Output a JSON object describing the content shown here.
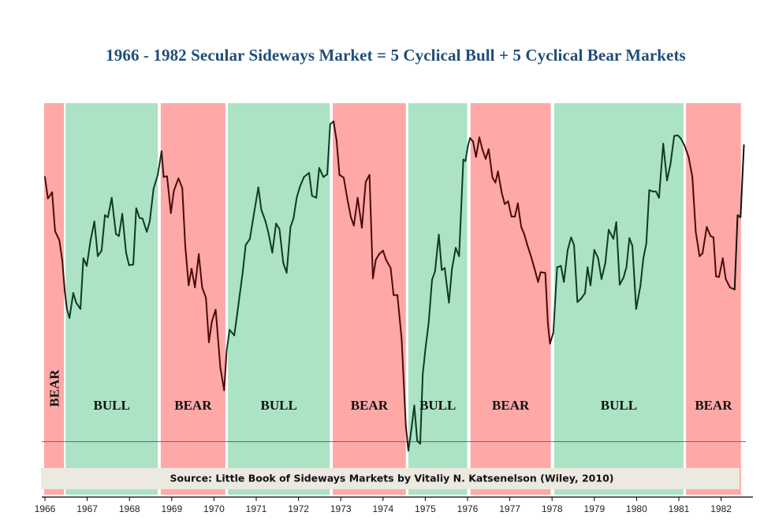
{
  "chart_data": {
    "type": "line",
    "title": "1966 - 1982 Secular Sideways Market = 5 Cyclical Bull + 5 Cyclical Bear Markets",
    "xlabel": "",
    "ylabel": "",
    "x_ticks": [
      "1966",
      "1967",
      "1968",
      "1969",
      "1970",
      "1971",
      "1972",
      "1973",
      "1974",
      "1975",
      "1976",
      "1977",
      "1978",
      "1979",
      "1980",
      "1981",
      "1982"
    ],
    "xlim": [
      1966,
      1982.7
    ],
    "ylim": [
      540,
      1100
    ],
    "grid": false,
    "y_axis_visible": false,
    "reference_line": {
      "value": 590,
      "color": "#4a6fa5"
    },
    "source_note": "Source: Little Book of Sideways Markets by Vitaliy N. Katsenelson (Wiley, 2010)",
    "colors": {
      "bear_band": "#ffa8a8",
      "bull_band": "#abe3c4",
      "bear_line": "#4a0a0a",
      "bull_line": "#0f3a22",
      "tail_line": "#111111",
      "title": "#1f4e79",
      "source_box": "#ece9e0"
    },
    "regimes": [
      {
        "type": "bear",
        "label": "BEAR",
        "start": 1966.0,
        "end": 1966.45,
        "vertical_label": true
      },
      {
        "type": "bull",
        "label": "BULL",
        "start": 1966.49,
        "end": 1968.67
      },
      {
        "type": "bear",
        "label": "BEAR",
        "start": 1968.74,
        "end": 1970.27
      },
      {
        "type": "bull",
        "label": "BULL",
        "start": 1970.33,
        "end": 1972.74
      },
      {
        "type": "bear",
        "label": "BEAR",
        "start": 1972.81,
        "end": 1974.54
      },
      {
        "type": "bull",
        "label": "BULL",
        "start": 1974.6,
        "end": 1975.99
      },
      {
        "type": "bear",
        "label": "BEAR",
        "start": 1976.07,
        "end": 1977.97
      },
      {
        "type": "bull",
        "label": "BULL",
        "start": 1978.05,
        "end": 1981.11
      },
      {
        "type": "bear",
        "label": "BEAR",
        "start": 1981.17,
        "end": 1982.47
      }
    ],
    "series": [
      {
        "name": "DJIA",
        "points": [
          [
            1966.0,
            971
          ],
          [
            1966.07,
            940
          ],
          [
            1966.17,
            949
          ],
          [
            1966.24,
            893
          ],
          [
            1966.34,
            880
          ],
          [
            1966.41,
            851
          ],
          [
            1966.47,
            806
          ],
          [
            1966.52,
            781
          ],
          [
            1966.58,
            768
          ],
          [
            1966.67,
            804
          ],
          [
            1966.74,
            790
          ],
          [
            1966.84,
            781
          ],
          [
            1966.91,
            854
          ],
          [
            1966.99,
            843
          ],
          [
            1967.08,
            880
          ],
          [
            1967.17,
            907
          ],
          [
            1967.25,
            857
          ],
          [
            1967.34,
            865
          ],
          [
            1967.42,
            916
          ],
          [
            1967.49,
            913
          ],
          [
            1967.58,
            941
          ],
          [
            1967.68,
            889
          ],
          [
            1967.75,
            886
          ],
          [
            1967.83,
            918
          ],
          [
            1967.92,
            862
          ],
          [
            1967.99,
            844
          ],
          [
            1968.09,
            845
          ],
          [
            1968.16,
            926
          ],
          [
            1968.24,
            912
          ],
          [
            1968.31,
            911
          ],
          [
            1968.41,
            892
          ],
          [
            1968.48,
            907
          ],
          [
            1968.57,
            954
          ],
          [
            1968.67,
            974
          ],
          [
            1968.76,
            1008
          ],
          [
            1968.81,
            971
          ],
          [
            1968.89,
            972
          ],
          [
            1968.98,
            919
          ],
          [
            1969.05,
            951
          ],
          [
            1969.16,
            969
          ],
          [
            1969.25,
            955
          ],
          [
            1969.32,
            872
          ],
          [
            1969.4,
            815
          ],
          [
            1969.47,
            839
          ],
          [
            1969.55,
            812
          ],
          [
            1969.64,
            860
          ],
          [
            1969.72,
            812
          ],
          [
            1969.81,
            797
          ],
          [
            1969.88,
            733
          ],
          [
            1969.95,
            763
          ],
          [
            1970.04,
            780
          ],
          [
            1970.15,
            697
          ],
          [
            1970.24,
            664
          ],
          [
            1970.3,
            721
          ],
          [
            1970.37,
            751
          ],
          [
            1970.48,
            743
          ],
          [
            1970.55,
            774
          ],
          [
            1970.68,
            834
          ],
          [
            1970.75,
            873
          ],
          [
            1970.85,
            882
          ],
          [
            1970.94,
            916
          ],
          [
            1971.05,
            956
          ],
          [
            1971.12,
            924
          ],
          [
            1971.22,
            907
          ],
          [
            1971.29,
            890
          ],
          [
            1971.38,
            862
          ],
          [
            1971.47,
            904
          ],
          [
            1971.55,
            896
          ],
          [
            1971.64,
            847
          ],
          [
            1971.72,
            833
          ],
          [
            1971.81,
            899
          ],
          [
            1971.88,
            911
          ],
          [
            1971.96,
            942
          ],
          [
            1972.04,
            958
          ],
          [
            1972.13,
            971
          ],
          [
            1972.25,
            977
          ],
          [
            1972.32,
            944
          ],
          [
            1972.42,
            941
          ],
          [
            1972.49,
            984
          ],
          [
            1972.59,
            971
          ],
          [
            1972.68,
            975
          ],
          [
            1972.75,
            1047
          ],
          [
            1972.83,
            1051
          ],
          [
            1972.9,
            1024
          ],
          [
            1972.97,
            974
          ],
          [
            1973.07,
            970
          ],
          [
            1973.16,
            938
          ],
          [
            1973.24,
            913
          ],
          [
            1973.31,
            901
          ],
          [
            1973.4,
            941
          ],
          [
            1973.5,
            898
          ],
          [
            1973.59,
            964
          ],
          [
            1973.68,
            974
          ],
          [
            1973.76,
            825
          ],
          [
            1973.83,
            852
          ],
          [
            1973.91,
            860
          ],
          [
            1974.0,
            865
          ],
          [
            1974.07,
            852
          ],
          [
            1974.18,
            840
          ],
          [
            1974.25,
            801
          ],
          [
            1974.34,
            801
          ],
          [
            1974.44,
            738
          ],
          [
            1974.54,
            613
          ],
          [
            1974.6,
            577
          ],
          [
            1974.67,
            607
          ],
          [
            1974.74,
            642
          ],
          [
            1974.81,
            591
          ],
          [
            1974.88,
            587
          ],
          [
            1974.94,
            687
          ],
          [
            1975.01,
            727
          ],
          [
            1975.08,
            761
          ],
          [
            1975.16,
            823
          ],
          [
            1975.23,
            835
          ],
          [
            1975.32,
            888
          ],
          [
            1975.39,
            837
          ],
          [
            1975.46,
            840
          ],
          [
            1975.56,
            790
          ],
          [
            1975.63,
            838
          ],
          [
            1975.72,
            869
          ],
          [
            1975.8,
            857
          ],
          [
            1975.9,
            996
          ],
          [
            1975.95,
            994
          ],
          [
            1976.01,
            1016
          ],
          [
            1976.06,
            1027
          ],
          [
            1976.13,
            1022
          ],
          [
            1976.2,
            1000
          ],
          [
            1976.28,
            1028
          ],
          [
            1976.35,
            1011
          ],
          [
            1976.43,
            997
          ],
          [
            1976.5,
            1011
          ],
          [
            1976.59,
            970
          ],
          [
            1976.66,
            963
          ],
          [
            1976.72,
            979
          ],
          [
            1976.81,
            948
          ],
          [
            1976.88,
            932
          ],
          [
            1976.96,
            936
          ],
          [
            1977.04,
            914
          ],
          [
            1977.12,
            914
          ],
          [
            1977.19,
            933
          ],
          [
            1977.27,
            899
          ],
          [
            1977.34,
            889
          ],
          [
            1977.41,
            874
          ],
          [
            1977.51,
            855
          ],
          [
            1977.58,
            840
          ],
          [
            1977.67,
            820
          ],
          [
            1977.73,
            834
          ],
          [
            1977.84,
            833
          ],
          [
            1977.9,
            761
          ],
          [
            1977.95,
            731
          ],
          [
            1978.03,
            747
          ],
          [
            1978.12,
            841
          ],
          [
            1978.21,
            843
          ],
          [
            1978.28,
            820
          ],
          [
            1978.37,
            866
          ],
          [
            1978.45,
            884
          ],
          [
            1978.52,
            873
          ],
          [
            1978.6,
            791
          ],
          [
            1978.69,
            796
          ],
          [
            1978.78,
            804
          ],
          [
            1978.84,
            841
          ],
          [
            1978.91,
            815
          ],
          [
            1979.0,
            866
          ],
          [
            1979.09,
            854
          ],
          [
            1979.17,
            824
          ],
          [
            1979.26,
            847
          ],
          [
            1979.34,
            895
          ],
          [
            1979.45,
            882
          ],
          [
            1979.52,
            906
          ],
          [
            1979.6,
            816
          ],
          [
            1979.69,
            826
          ],
          [
            1979.76,
            841
          ],
          [
            1979.83,
            883
          ],
          [
            1979.9,
            872
          ],
          [
            1979.99,
            781
          ],
          [
            1980.09,
            814
          ],
          [
            1980.16,
            854
          ],
          [
            1980.23,
            875
          ],
          [
            1980.3,
            952
          ],
          [
            1980.39,
            950
          ],
          [
            1980.46,
            950
          ],
          [
            1980.53,
            941
          ],
          [
            1980.63,
            1019
          ],
          [
            1980.72,
            966
          ],
          [
            1980.8,
            989
          ],
          [
            1980.89,
            1030
          ],
          [
            1980.97,
            1031
          ],
          [
            1981.04,
            1027
          ],
          [
            1981.13,
            1017
          ],
          [
            1981.23,
            1000
          ],
          [
            1981.32,
            971
          ],
          [
            1981.4,
            892
          ],
          [
            1981.49,
            857
          ],
          [
            1981.56,
            861
          ],
          [
            1981.66,
            899
          ],
          [
            1981.75,
            886
          ],
          [
            1981.82,
            884
          ],
          [
            1981.88,
            828
          ],
          [
            1981.95,
            827
          ],
          [
            1982.04,
            854
          ],
          [
            1982.11,
            824
          ],
          [
            1982.21,
            812
          ],
          [
            1982.32,
            809
          ]
        ]
      },
      {
        "name": "DJIA (after cycle end)",
        "points": [
          [
            1982.32,
            809
          ],
          [
            1982.39,
            916
          ],
          [
            1982.46,
            913
          ],
          [
            1982.54,
            1017
          ]
        ]
      }
    ]
  }
}
